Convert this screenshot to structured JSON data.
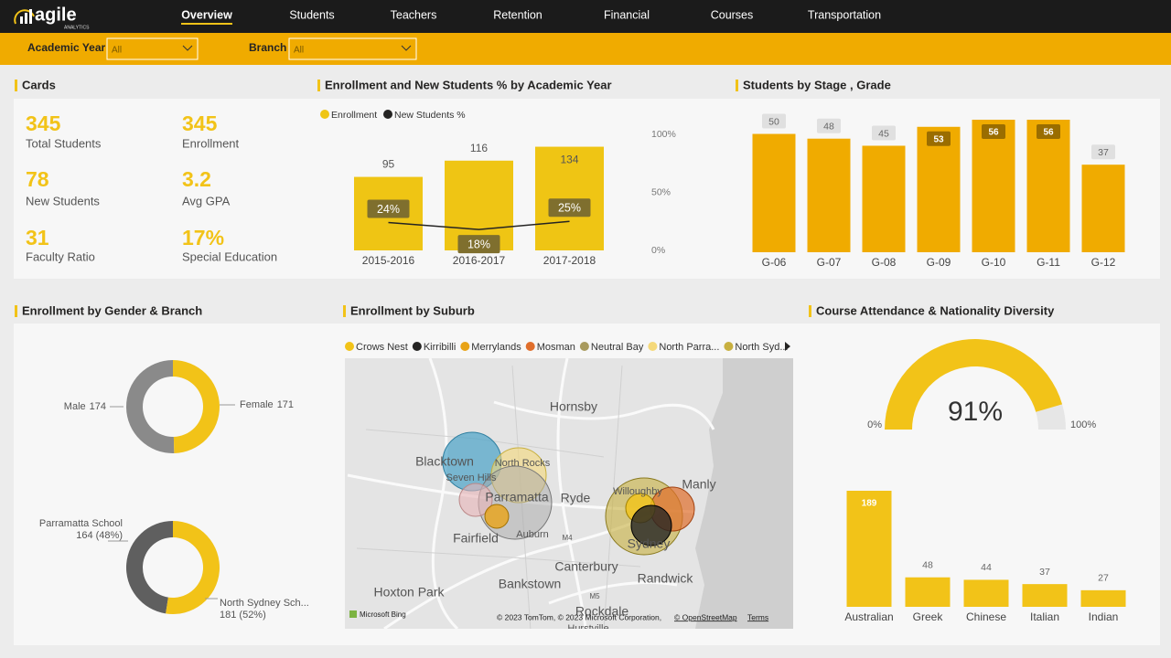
{
  "nav": {
    "logo": "agile",
    "logo_sub": "ANALYTICS",
    "tabs": [
      "Overview",
      "Students",
      "Teachers",
      "Retention",
      "Financial",
      "Courses",
      "Transportation"
    ],
    "active_tab": 0
  },
  "filters": [
    {
      "label": "Academic Year",
      "value": "All"
    },
    {
      "label": "Branch",
      "value": "All"
    }
  ],
  "cards": {
    "title": "Cards",
    "items": [
      {
        "value": "345",
        "label": "Total Students"
      },
      {
        "value": "345",
        "label": "Enrollment"
      },
      {
        "value": "78",
        "label": "New Students"
      },
      {
        "value": "3.2",
        "label": "Avg GPA"
      },
      {
        "value": "31",
        "label": "Faculty Ratio"
      },
      {
        "value": "17%",
        "label": "Special Education"
      }
    ]
  },
  "chart_data": [
    {
      "type": "combo",
      "title": "Enrollment and New Students % by Academic Year",
      "categories": [
        "2015-2016",
        "2016-2017",
        "2017-2018"
      ],
      "series": [
        {
          "name": "Enrollment",
          "color": "#EFC514",
          "values": [
            95,
            116,
            134
          ]
        },
        {
          "name": "New Students %",
          "color": "#252423",
          "axis": "y2",
          "values": [
            24,
            18,
            25
          ],
          "value_labels": [
            "24%",
            "18%",
            "25%"
          ]
        }
      ],
      "ylim": [
        0,
        150
      ],
      "y2lim": [
        0,
        100
      ],
      "y2ticks": [
        {
          "value": 0,
          "label": "0%"
        },
        {
          "value": 50,
          "label": "50%"
        },
        {
          "value": 100,
          "label": "100%"
        }
      ]
    },
    {
      "type": "bar",
      "title": "Students by Stage , Grade",
      "categories": [
        "G-06",
        "G-07",
        "G-08",
        "G-09",
        "G-10",
        "G-11",
        "G-12"
      ],
      "values": [
        50,
        48,
        45,
        53,
        56,
        56,
        37
      ],
      "color": "#F0AB00",
      "ylim": [
        0,
        56
      ]
    },
    {
      "type": "donut",
      "title": "Enrollment by Gender & Branch",
      "categories": [
        "Male",
        "Female"
      ],
      "values": [
        174,
        171
      ],
      "colors": [
        "#8a8a8a",
        "#F2C318"
      ]
    },
    {
      "type": "donut",
      "categories": [
        "Parramatta School",
        "North Sydney Sch..."
      ],
      "values": [
        164,
        181
      ],
      "value_labels": [
        "164 (48%)",
        "181 (52%)"
      ],
      "colors": [
        "#5f5f5f",
        "#F2C318"
      ]
    },
    {
      "type": "gauge",
      "title": "Course Attendance & Nationality Diversity",
      "value": 91,
      "value_label": "91%",
      "min": {
        "value": 0,
        "label": "0%"
      },
      "max": {
        "value": 100,
        "label": "100%"
      },
      "color": "#F2C318"
    },
    {
      "type": "bar",
      "categories": [
        "Australian",
        "Greek",
        "Chinese",
        "Italian",
        "Indian"
      ],
      "values": [
        189,
        48,
        44,
        37,
        27
      ],
      "color": "#F2C318",
      "ylim": [
        0,
        189
      ]
    }
  ],
  "map": {
    "title": "Enrollment by Suburb",
    "legend": [
      {
        "name": "Crows Nest",
        "color": "#F2C318"
      },
      {
        "name": "Kirribilli",
        "color": "#252423"
      },
      {
        "name": "Merrylands",
        "color": "#E8A317"
      },
      {
        "name": "Mosman",
        "color": "#E06E2B"
      },
      {
        "name": "Neutral Bay",
        "color": "#A89A5E"
      },
      {
        "name": "North Parra...",
        "color": "#F5D97A"
      },
      {
        "name": "North Syd...",
        "color": "#C8B040"
      }
    ],
    "places": [
      "Hornsby",
      "Blacktown",
      "Seven Hills",
      "North Rocks",
      "Parramatta",
      "Ryde",
      "Auburn",
      "Fairfield",
      "Sydney",
      "Manly",
      "Willoughby",
      "Canterbury",
      "Randwick",
      "Bankstown",
      "Hoxton Park",
      "Rockdale",
      "Hurstville",
      "M4",
      "M5"
    ],
    "attribution": [
      "Microsoft Bing",
      "© 2023 TomTom, © 2023 Microsoft Corporation,",
      "© OpenStreetMap",
      "Terms"
    ]
  }
}
